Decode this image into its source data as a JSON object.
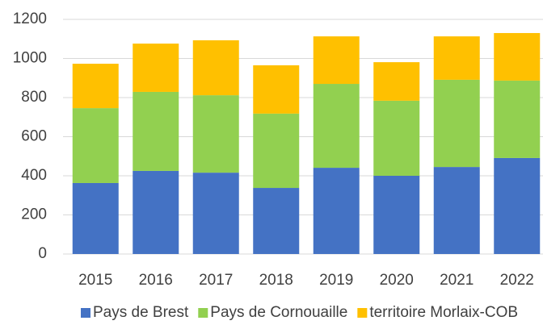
{
  "chart_data": {
    "type": "stacked_bar",
    "categories": [
      "2015",
      "2016",
      "2017",
      "2018",
      "2019",
      "2020",
      "2021",
      "2022"
    ],
    "series": [
      {
        "name": "Pays de Brest",
        "color": "#4472c4",
        "values": [
          363,
          425,
          416,
          338,
          441,
          400,
          445,
          491
        ]
      },
      {
        "name": "Pays de Cornouaille",
        "color": "#92d050",
        "values": [
          383,
          404,
          396,
          380,
          429,
          384,
          446,
          396
        ]
      },
      {
        "name": "territoire Morlaix-COB",
        "color": "#ffc000",
        "values": [
          227,
          247,
          281,
          247,
          243,
          197,
          222,
          243
        ]
      }
    ],
    "ylim": [
      0,
      1200
    ],
    "yticks": [
      0,
      200,
      400,
      600,
      800,
      1000,
      1200
    ],
    "grid": true,
    "legend": "bottom"
  }
}
